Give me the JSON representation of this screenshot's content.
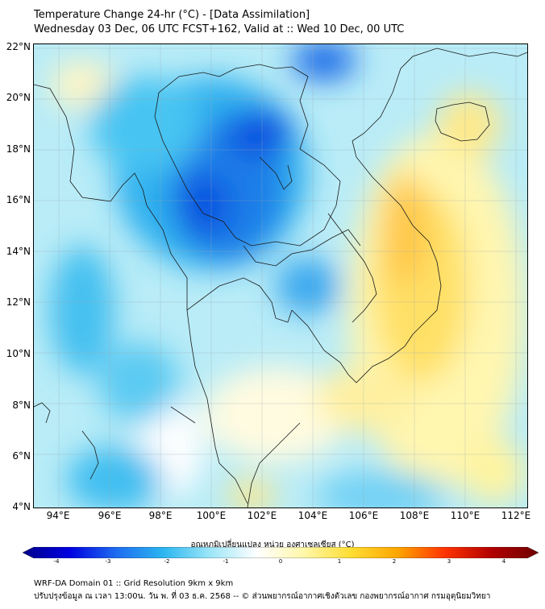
{
  "title_line1": "Temperature Change 24-hr (°C) - [Data Assimilation]",
  "title_line2": "Wednesday 03 Dec, 06 UTC FCST+162, Valid at :: Wed 10 Dec, 00 UTC",
  "lat_labels": [
    "22°N",
    "20°N",
    "18°N",
    "16°N",
    "14°N",
    "12°N",
    "10°N",
    "8°N",
    "6°N",
    "4°N"
  ],
  "lon_labels": [
    "94°E",
    "96°E",
    "98°E",
    "100°E",
    "102°E",
    "104°E",
    "106°E",
    "108°E",
    "110°E",
    "112°E"
  ],
  "colorbar": {
    "label": "อุณหภูมิเปลี่ยนแปลง หน่วย องศาเซลเซียส (°C)",
    "min": -4,
    "max": 4,
    "ticks": [
      "-4",
      "-3",
      "-2",
      "-1",
      "0",
      "1",
      "2",
      "3",
      "4"
    ],
    "colors": [
      "#00008b",
      "#0000e0",
      "#1e6cf0",
      "#2bb6f0",
      "#9ce6f8",
      "#ffffff",
      "#fff7a8",
      "#ffdd33",
      "#ffa500",
      "#ff3300",
      "#b20000",
      "#6e0000"
    ]
  },
  "footer_line1": "WRF-DA Domain 01 :: Grid Resolution 9km x 9km",
  "footer_line2": "ปรับปรุงข้อมูล ณ เวลา 13:00น. วัน พ. ที่ 03 ธ.ค. 2568 -- © ส่วนพยากรณ์อากาศเชิงตัวเลข กองพยากรณ์อากาศ กรมอุตุนิยมวิทยา"
}
